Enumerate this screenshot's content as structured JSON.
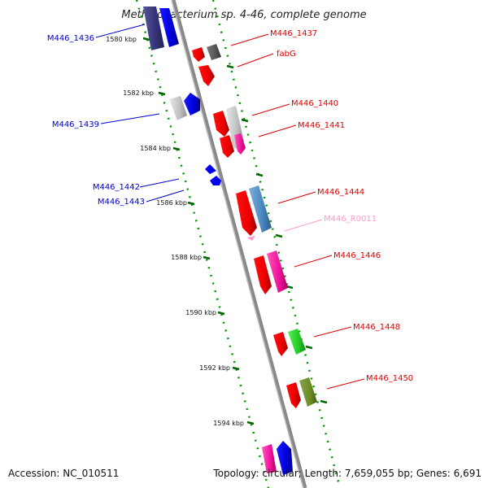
{
  "title": "Methylobacterium sp. 4-46, complete genome",
  "footer": {
    "accession": "Accession: NC_010511",
    "topology": "Topology: circular; Length: 7,659,055 bp; Genes: 6,691"
  },
  "ticks": [
    "1580 kbp",
    "1582 kbp",
    "1584 kbp",
    "1586 kbp",
    "1588 kbp",
    "1590 kbp",
    "1592 kbp",
    "1594 kbp"
  ],
  "genes": {
    "M446_1436": "M446_1436",
    "M446_1437": "M446_1437",
    "fabG": "fabG",
    "M446_1439": "M446_1439",
    "M446_1440": "M446_1440",
    "M446_1441": "M446_1441",
    "M446_1442": "M446_1442",
    "M446_1443": "M446_1443",
    "M446_1444": "M446_1444",
    "M446_R0011": "M446_R0011",
    "M446_1446": "M446_1446",
    "M446_1448": "M446_1448",
    "M446_1450": "M446_1450"
  },
  "colors": {
    "reverse_strand": "#dd0000",
    "forward_strand": "#0000cc",
    "rna": "#ff99cc",
    "backbone": "#888888",
    "tick_green": "#008800"
  }
}
